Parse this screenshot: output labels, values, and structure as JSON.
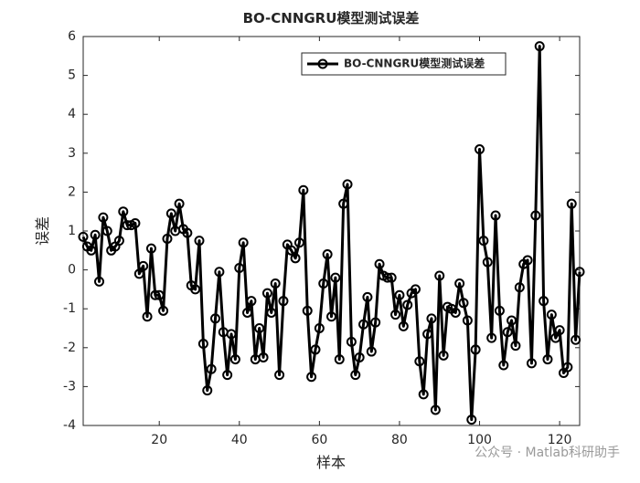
{
  "chart_data": {
    "type": "line",
    "title": "BO-CNNGRU模型测试误差",
    "x_label": "样本",
    "y_label": "误差",
    "annotation": "公众号 · Matlab科研助手",
    "x": [
      1,
      2,
      3,
      4,
      5,
      6,
      7,
      8,
      9,
      10,
      11,
      12,
      13,
      14,
      15,
      16,
      17,
      18,
      19,
      20,
      21,
      22,
      23,
      24,
      25,
      26,
      27,
      28,
      29,
      30,
      31,
      32,
      33,
      34,
      35,
      36,
      37,
      38,
      39,
      40,
      41,
      42,
      43,
      44,
      45,
      46,
      47,
      48,
      49,
      50,
      51,
      52,
      53,
      54,
      55,
      56,
      57,
      58,
      59,
      60,
      61,
      62,
      63,
      64,
      65,
      66,
      67,
      68,
      69,
      70,
      71,
      72,
      73,
      74,
      75,
      76,
      77,
      78,
      79,
      80,
      81,
      82,
      83,
      84,
      85,
      86,
      87,
      88,
      89,
      90,
      91,
      92,
      93,
      94,
      95,
      96,
      97,
      98,
      99,
      100,
      101,
      102,
      103,
      104,
      105,
      106,
      107,
      108,
      109,
      110,
      111,
      112,
      113,
      114,
      115,
      116,
      117,
      118,
      119,
      120,
      121,
      122,
      123,
      124,
      125
    ],
    "series": [
      {
        "name": "BO-CNNGRU模型测试误差",
        "color": "#000000",
        "values": [
          0.85,
          0.6,
          0.5,
          0.9,
          -0.3,
          1.35,
          1.0,
          0.5,
          0.6,
          0.75,
          1.5,
          1.15,
          1.15,
          1.2,
          -0.1,
          0.1,
          -1.2,
          0.55,
          -0.65,
          -0.65,
          -1.05,
          0.8,
          1.45,
          1.0,
          1.7,
          1.05,
          0.95,
          -0.4,
          -0.5,
          0.75,
          -1.9,
          -3.1,
          -2.55,
          -1.25,
          -0.05,
          -1.6,
          -2.7,
          -1.65,
          -2.3,
          0.05,
          0.7,
          -1.1,
          -0.8,
          -2.3,
          -1.5,
          -2.25,
          -0.6,
          -1.1,
          -0.35,
          -2.7,
          -0.8,
          0.65,
          0.5,
          0.3,
          0.7,
          2.05,
          -1.05,
          -2.75,
          -2.05,
          -1.5,
          -0.35,
          0.4,
          -1.2,
          -0.2,
          -2.3,
          1.7,
          2.2,
          -1.85,
          -2.7,
          -2.25,
          -1.4,
          -0.7,
          -2.1,
          -1.35,
          0.15,
          -0.15,
          -0.2,
          -0.2,
          -1.15,
          -0.65,
          -1.45,
          -0.9,
          -0.6,
          -0.5,
          -2.35,
          -3.2,
          -1.65,
          -1.25,
          -3.6,
          -0.15,
          -2.2,
          -0.95,
          -1.0,
          -1.1,
          -0.35,
          -0.85,
          -1.3,
          -3.85,
          -2.05,
          3.1,
          0.75,
          0.2,
          -1.75,
          1.4,
          -1.05,
          -2.45,
          -1.6,
          -1.3,
          -1.95,
          -0.45,
          0.15,
          0.25,
          -2.4,
          1.4,
          5.75,
          -0.8,
          -2.3,
          -1.15,
          -1.75,
          -1.55,
          -2.65,
          -2.5,
          1.7,
          -1.8,
          -0.05
        ]
      }
    ],
    "xlim": [
      1,
      125
    ],
    "ylim": [
      -4,
      6
    ],
    "xticks": [
      20,
      40,
      60,
      80,
      100,
      120
    ],
    "yticks": [
      -4,
      -3,
      -2,
      -1,
      0,
      1,
      2,
      3,
      4,
      5,
      6
    ],
    "grid": false,
    "legend": "northeast"
  }
}
